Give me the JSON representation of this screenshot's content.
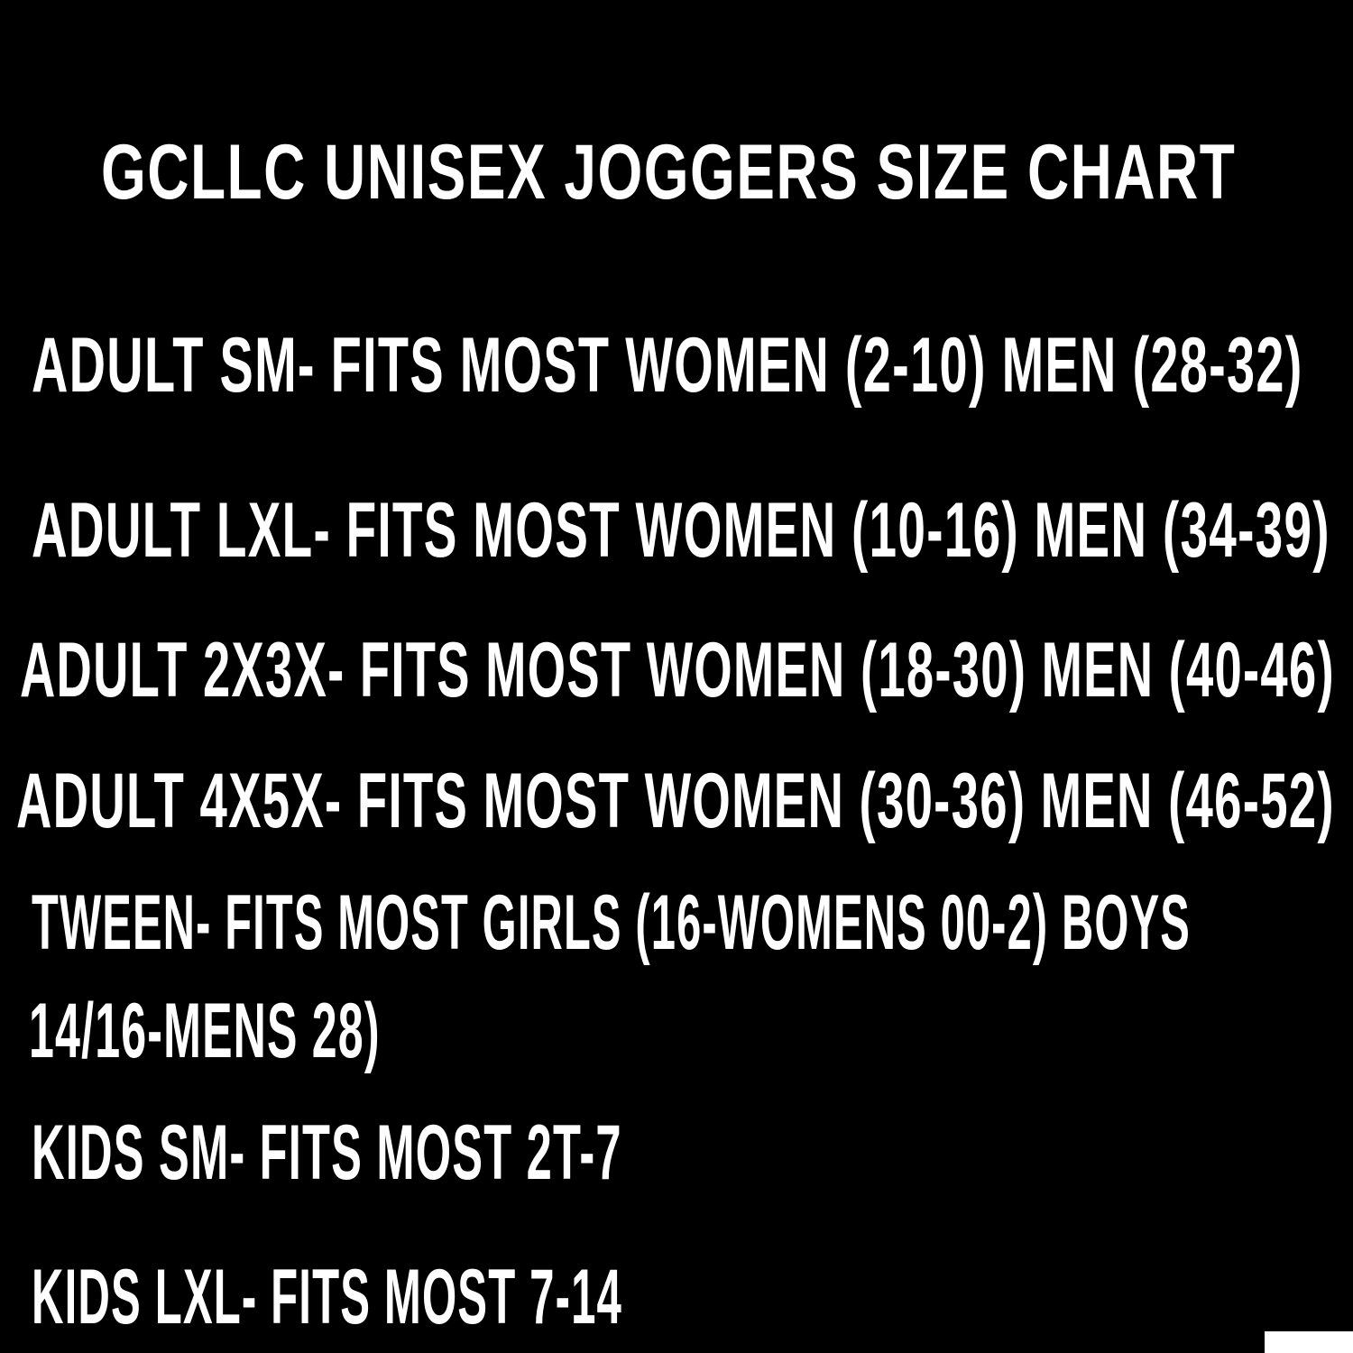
{
  "title": "GCLLC UNISEX JOGGERS SIZE CHART",
  "sizes": [
    "ADULT SM- FITS MOST WOMEN (2-10) MEN (28-32)",
    "ADULT LXL- FITS MOST WOMEN (10-16) MEN (34-39)",
    "ADULT 2X3X- FITS MOST WOMEN (18-30) MEN (40-46)",
    "ADULT 4X5X- FITS MOST WOMEN (30-36) MEN (46-52)",
    "TWEEN- FITS MOST GIRLS (16-WOMENS 00-2) BOYS",
    "14/16-MENS 28)",
    "KIDS SM- FITS MOST 2T-7",
    "KIDS LXL- FITS MOST 7-14"
  ],
  "colors": {
    "background": "#000000",
    "text": "#ffffff"
  }
}
